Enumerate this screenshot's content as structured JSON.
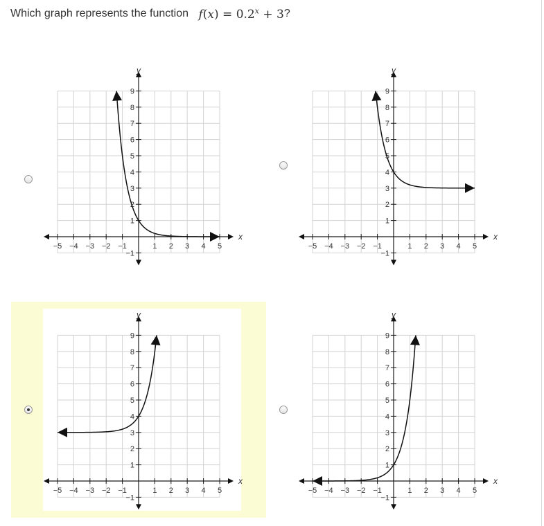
{
  "question": {
    "prefix": "Which graph represents the function",
    "equation": {
      "fx": "f",
      "paren_open": "(",
      "var": "x",
      "paren_close_eq": ") = 0.2",
      "exponent": "x",
      "tail": " + 3"
    },
    "suffix": "?"
  },
  "axis_labels": {
    "x": "x",
    "y": "y"
  },
  "x_ticks": [
    "−5",
    "−4",
    "−3",
    "−2",
    "−1",
    "1",
    "2",
    "3",
    "4",
    "5"
  ],
  "y_ticks": [
    "1",
    "2",
    "3",
    "4",
    "5",
    "6",
    "7",
    "8",
    "9"
  ],
  "y_neg_tick": "−1",
  "colors": {
    "selected_highlight": "#fcfcd4",
    "grid": "#d3d3d3",
    "curve": "#111111"
  },
  "options": [
    {
      "id": "A",
      "selected": false,
      "function": "y = 0.2^x",
      "arrows": "up-left, right",
      "chart_data": {
        "type": "line",
        "title": "",
        "xlim": [
          -5,
          5
        ],
        "ylim": [
          -1,
          9
        ],
        "xlabel": "x",
        "ylabel": "y",
        "grid": true
      }
    },
    {
      "id": "B",
      "selected": false,
      "function": "y = 0.2^x + 3",
      "arrows": "up-left, right",
      "chart_data": {
        "type": "line",
        "title": "",
        "xlim": [
          -5,
          5
        ],
        "ylim": [
          -1,
          9
        ],
        "xlabel": "x",
        "ylabel": "y",
        "grid": true
      }
    },
    {
      "id": "C",
      "selected": true,
      "function": "y = 5^x + 3",
      "arrows": "left, up-right",
      "chart_data": {
        "type": "line",
        "title": "",
        "xlim": [
          -5,
          5
        ],
        "ylim": [
          -1,
          9
        ],
        "xlabel": "x",
        "ylabel": "y",
        "grid": true
      }
    },
    {
      "id": "D",
      "selected": false,
      "function": "y = 5^x",
      "arrows": "left, up-right",
      "chart_data": {
        "type": "line",
        "title": "",
        "xlim": [
          -5,
          5
        ],
        "ylim": [
          -1,
          9
        ],
        "xlabel": "x",
        "ylabel": "y",
        "grid": true
      }
    }
  ]
}
